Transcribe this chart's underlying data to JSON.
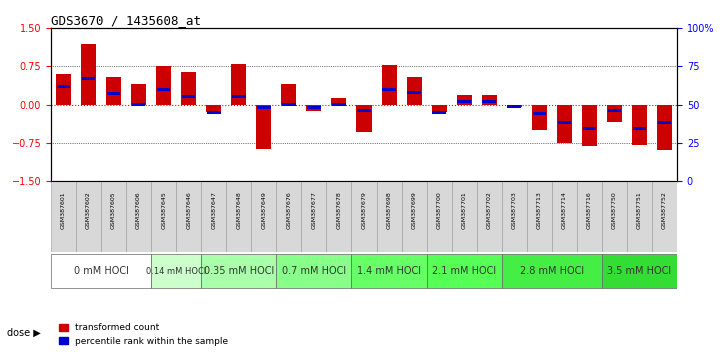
{
  "title": "GDS3670 / 1435608_at",
  "samples": [
    "GSM387601",
    "GSM387602",
    "GSM387605",
    "GSM387606",
    "GSM387645",
    "GSM387646",
    "GSM387647",
    "GSM387648",
    "GSM387649",
    "GSM387676",
    "GSM387677",
    "GSM387678",
    "GSM387679",
    "GSM387698",
    "GSM387699",
    "GSM387700",
    "GSM387701",
    "GSM387702",
    "GSM387703",
    "GSM387713",
    "GSM387714",
    "GSM387716",
    "GSM387750",
    "GSM387751",
    "GSM387752"
  ],
  "transformed_count": [
    0.6,
    1.2,
    0.55,
    0.4,
    0.75,
    0.65,
    -0.15,
    0.8,
    -0.87,
    0.4,
    -0.12,
    0.12,
    -0.55,
    0.78,
    0.55,
    -0.15,
    0.18,
    0.18,
    -0.05,
    -0.5,
    -0.75,
    -0.82,
    -0.35,
    -0.8,
    -0.9
  ],
  "percentile_rank": [
    0.62,
    0.67,
    0.57,
    0.5,
    0.6,
    0.55,
    0.45,
    0.55,
    0.48,
    0.5,
    0.48,
    0.5,
    0.46,
    0.6,
    0.58,
    0.45,
    0.52,
    0.52,
    0.49,
    0.44,
    0.38,
    0.34,
    0.46,
    0.34,
    0.38
  ],
  "dose_groups": [
    {
      "label": "0 mM HOCl",
      "start": 0,
      "end": 4,
      "color": "#ffffff"
    },
    {
      "label": "0.14 mM HOCl",
      "start": 4,
      "end": 6,
      "color": "#ccffcc"
    },
    {
      "label": "0.35 mM HOCl",
      "start": 6,
      "end": 9,
      "color": "#aaffaa"
    },
    {
      "label": "0.7 mM HOCl",
      "start": 9,
      "end": 12,
      "color": "#88ff88"
    },
    {
      "label": "1.4 mM HOCl",
      "start": 12,
      "end": 15,
      "color": "#66ff66"
    },
    {
      "label": "2.1 mM HOCl",
      "start": 15,
      "end": 18,
      "color": "#55ff55"
    },
    {
      "label": "2.8 mM HOCl",
      "start": 18,
      "end": 22,
      "color": "#44ee44"
    },
    {
      "label": "3.5 mM HOCl",
      "start": 22,
      "end": 25,
      "color": "#33dd33"
    }
  ],
  "ylim": [
    -1.5,
    1.5
  ],
  "yticks_left": [
    -1.5,
    -0.75,
    0.0,
    0.75,
    1.5
  ],
  "yticks_right": [
    0,
    25,
    50,
    75,
    100
  ],
  "bar_color_red": "#cc0000",
  "bar_color_blue": "#0000cc",
  "zero_line_color": "#ff0000",
  "grid_color": "#000000",
  "bg_color": "#ffffff",
  "dose_label": "dose"
}
